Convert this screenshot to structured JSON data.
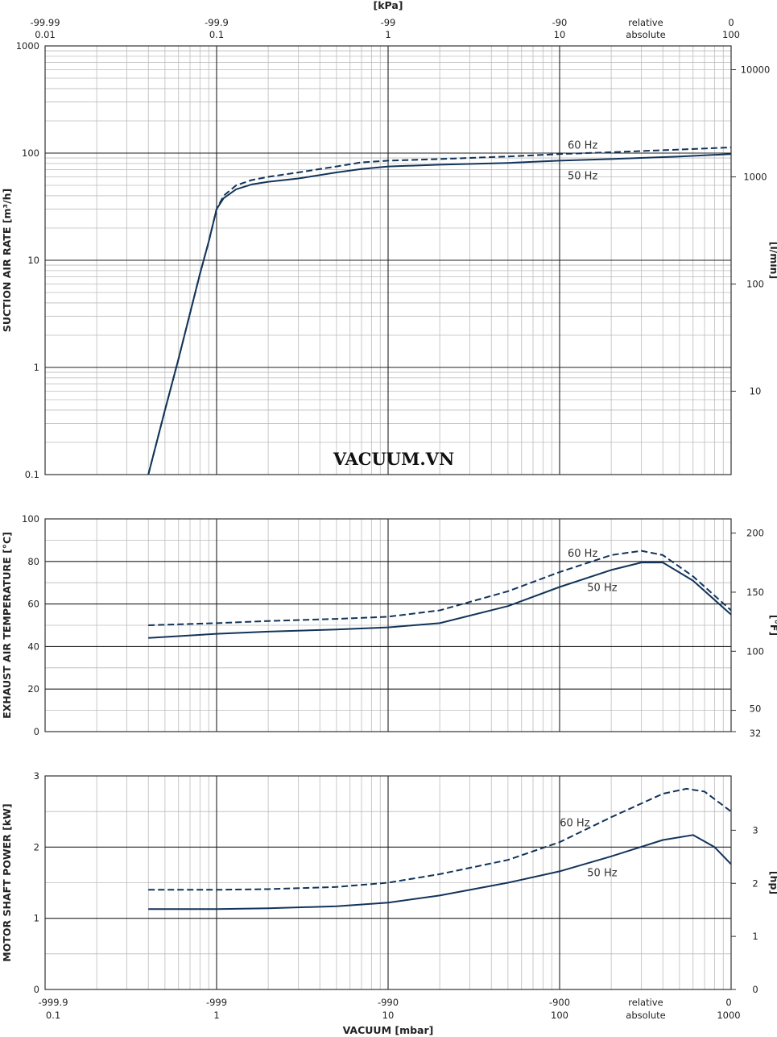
{
  "watermark": "VACUUM.VN",
  "colors": {
    "curve": "#12345a",
    "major_grid": "#222222",
    "minor_grid": "#bbbbbb"
  },
  "top_axis": {
    "title": "[kPa]",
    "ticks": [
      {
        "mbar": 0.1,
        "relative": "-99.99",
        "absolute": "0.01"
      },
      {
        "mbar": 1,
        "relative": "-99.9",
        "absolute": "0.1"
      },
      {
        "mbar": 10,
        "relative": "-99",
        "absolute": "1"
      },
      {
        "mbar": 100,
        "relative": "-90",
        "absolute": "10"
      },
      {
        "mbar": 1000,
        "relative": "0",
        "absolute": "100"
      }
    ],
    "mode_labels": {
      "relative": "relative",
      "absolute": "absolute"
    }
  },
  "bottom_axis": {
    "title": "VACUUM  [mbar]",
    "ticks": [
      {
        "mbar": 0.1,
        "relative": "-999.9",
        "absolute": "0.1"
      },
      {
        "mbar": 1,
        "relative": "-999",
        "absolute": "1"
      },
      {
        "mbar": 10,
        "relative": "-990",
        "absolute": "10"
      },
      {
        "mbar": 100,
        "relative": "-900",
        "absolute": "100"
      },
      {
        "mbar": 1000,
        "relative": "0",
        "absolute": "1000"
      }
    ],
    "mode_labels": {
      "relative": "relative",
      "absolute": "absolute"
    }
  },
  "chart_data": [
    {
      "type": "line",
      "x_scale": "log",
      "xlim": [
        0.1,
        1000
      ],
      "ylabel": "SUCTION AIR RATE  [m³/h]",
      "y_scale": "log",
      "ylim": [
        0.1,
        1000
      ],
      "y_ticks": [
        "0.1",
        "1",
        "10",
        "100",
        "1000"
      ],
      "y2label": "[l/min]",
      "y2_ticks": [
        {
          "value": 10,
          "label": "10"
        },
        {
          "value": 100,
          "label": "100"
        },
        {
          "value": 1000,
          "label": "1000"
        },
        {
          "value": 10000,
          "label": "10000"
        }
      ],
      "series": [
        {
          "name": "60 Hz",
          "style": "dashed",
          "x": [
            0.4,
            0.5,
            0.6,
            0.7,
            0.8,
            0.9,
            1.0,
            1.1,
            1.3,
            1.6,
            2,
            3,
            5,
            7,
            10,
            20,
            50,
            100,
            200,
            500,
            1000
          ],
          "y": [
            0.1,
            0.4,
            1.2,
            3.2,
            7.5,
            15,
            30,
            40,
            50,
            56,
            60,
            66,
            75,
            82,
            85,
            88,
            93,
            98,
            102,
            108,
            113
          ]
        },
        {
          "name": "50 Hz",
          "style": "solid",
          "x": [
            0.4,
            0.5,
            0.6,
            0.7,
            0.8,
            0.9,
            1.0,
            1.1,
            1.3,
            1.6,
            2,
            3,
            5,
            7,
            10,
            20,
            50,
            100,
            200,
            500,
            1000
          ],
          "y": [
            0.1,
            0.4,
            1.2,
            3.2,
            7.5,
            15,
            30,
            38,
            46,
            51,
            54,
            58,
            66,
            71,
            75,
            78,
            81,
            85,
            88,
            93,
            98
          ]
        }
      ],
      "curve_labels": [
        {
          "text": "60 Hz",
          "x": 100,
          "y": 120
        },
        {
          "text": "50 Hz",
          "x": 100,
          "y": 62
        }
      ]
    },
    {
      "type": "line",
      "x_scale": "log",
      "xlim": [
        0.1,
        1000
      ],
      "ylabel": "EXHAUST AIR TEMPERATURE  [°C]",
      "y_scale": "linear",
      "ylim": [
        0,
        100
      ],
      "y_ticks": [
        "0",
        "20",
        "40",
        "60",
        "80",
        "100"
      ],
      "y2label": "[°F]",
      "y2_ticks": [
        {
          "value": 32,
          "label": "32"
        },
        {
          "value": 50,
          "label": "50"
        },
        {
          "value": 100,
          "label": "100"
        },
        {
          "value": 150,
          "label": "150"
        },
        {
          "value": 200,
          "label": "200"
        }
      ],
      "series": [
        {
          "name": "60 Hz",
          "style": "dashed",
          "x": [
            0.4,
            1,
            2,
            5,
            10,
            20,
            50,
            100,
            200,
            300,
            400,
            600,
            1000
          ],
          "y": [
            50,
            51,
            52,
            53,
            54,
            57,
            66,
            75,
            83,
            85,
            83,
            73,
            57
          ]
        },
        {
          "name": "50 Hz",
          "style": "solid",
          "x": [
            0.4,
            1,
            2,
            5,
            10,
            20,
            50,
            100,
            200,
            300,
            400,
            600,
            1000
          ],
          "y": [
            44,
            46,
            47,
            48,
            49,
            51,
            59,
            68,
            76,
            79.5,
            79.5,
            71,
            55
          ]
        }
      ],
      "curve_labels": [
        {
          "text": "60 Hz",
          "x": 100,
          "y": 84
        },
        {
          "text": "50 Hz",
          "x": 130,
          "y": 68
        }
      ]
    },
    {
      "type": "line",
      "x_scale": "log",
      "xlim": [
        0.1,
        1000
      ],
      "ylabel": "MOTOR SHAFT POWER  [kW]",
      "y_scale": "linear",
      "ylim": [
        0,
        3
      ],
      "y_ticks": [
        "0",
        "1",
        "2",
        "3"
      ],
      "y2label": "[hp]",
      "y2_ticks": [
        {
          "value": 0,
          "label": "0"
        },
        {
          "value": 1,
          "label": "1"
        },
        {
          "value": 2,
          "label": "2"
        },
        {
          "value": 3,
          "label": "3"
        }
      ],
      "series": [
        {
          "name": "60 Hz",
          "style": "dashed",
          "x": [
            0.4,
            1,
            2,
            5,
            10,
            20,
            50,
            100,
            200,
            400,
            550,
            700,
            1000
          ],
          "y": [
            1.4,
            1.4,
            1.41,
            1.44,
            1.5,
            1.62,
            1.82,
            2.07,
            2.42,
            2.75,
            2.82,
            2.78,
            2.5
          ]
        },
        {
          "name": "50 Hz",
          "style": "solid",
          "x": [
            0.4,
            1,
            2,
            5,
            10,
            20,
            50,
            100,
            200,
            400,
            600,
            800,
            1000
          ],
          "y": [
            1.13,
            1.13,
            1.14,
            1.17,
            1.22,
            1.32,
            1.5,
            1.66,
            1.87,
            2.1,
            2.17,
            2.0,
            1.76
          ]
        }
      ],
      "curve_labels": [
        {
          "text": "60 Hz",
          "x": 90,
          "y": 2.35
        },
        {
          "text": "50 Hz",
          "x": 130,
          "y": 1.65
        }
      ]
    }
  ]
}
